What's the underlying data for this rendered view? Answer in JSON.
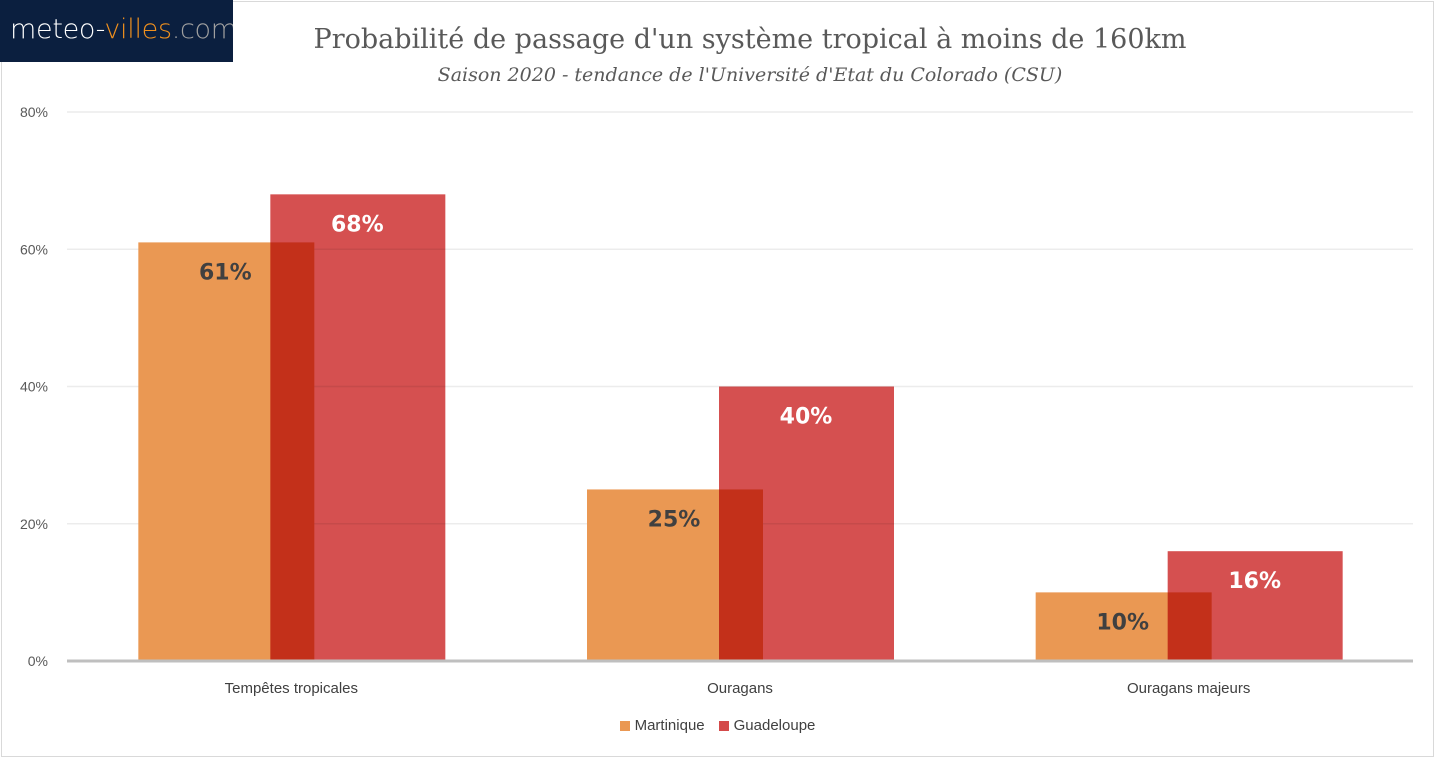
{
  "logo": {
    "part1": "meteo-",
    "part2": "villes",
    "part3": ".com"
  },
  "chart_data": {
    "type": "bar",
    "title": "Probabilité de passage d'un système tropical à moins de 160km",
    "subtitle": "Saison 2020 - tendance de l'Université d'Etat du Colorado (CSU)",
    "categories": [
      "Tempêtes  tropicales",
      "Ouragans",
      "Ouragans majeurs"
    ],
    "series": [
      {
        "name": "Martinique",
        "values": [
          61,
          25,
          10
        ],
        "labels": [
          "61%",
          "25%",
          "10%"
        ],
        "color": "#EA9853",
        "label_color": "#404040"
      },
      {
        "name": "Guadeloupe",
        "values": [
          68,
          40,
          16
        ],
        "labels": [
          "68%",
          "40%",
          "16%"
        ],
        "color": "#D44A4A",
        "label_color": "#FFFFFF"
      }
    ],
    "ylim": [
      0,
      80
    ],
    "yticks": [
      "0%",
      "20%",
      "40%",
      "60%",
      "80%"
    ],
    "grid": true,
    "legend_position": "bottom",
    "overlapping_bars": true
  }
}
